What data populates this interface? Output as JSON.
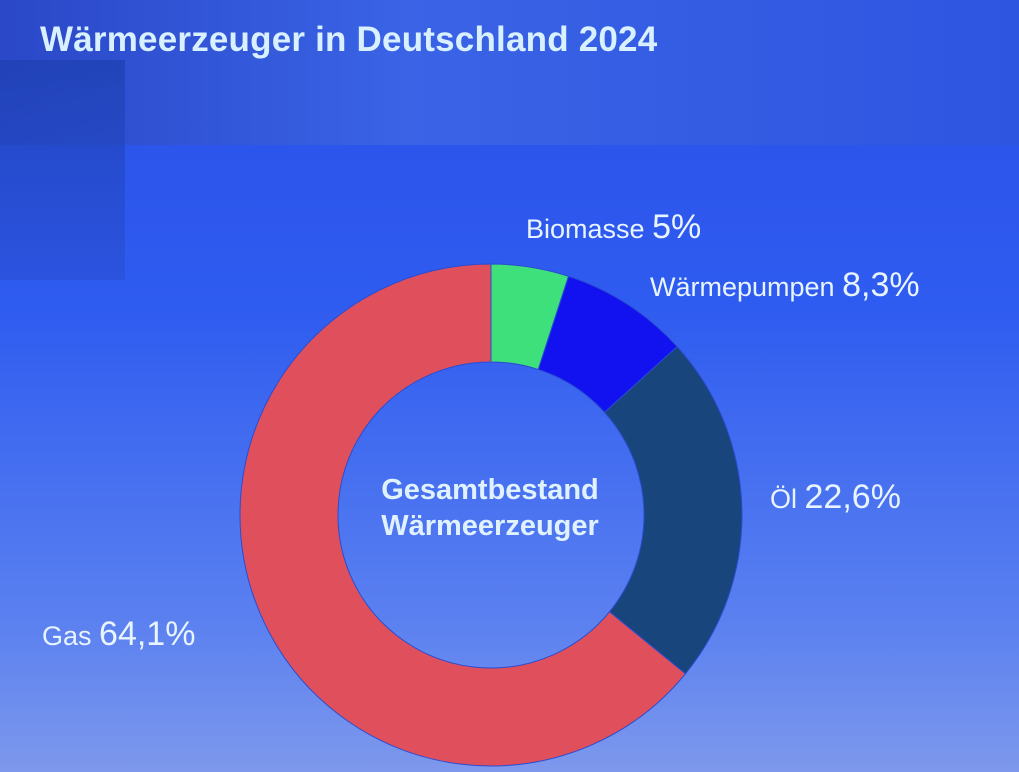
{
  "chart_data": {
    "type": "pie",
    "title": "Wärmeerzeuger in Deutschland 2024",
    "center_label": [
      "Gesamtbestand",
      "Wärmeerzeuger"
    ],
    "slices": [
      {
        "name": "Biomasse",
        "value": 5,
        "label": "5%",
        "color": "#3ee07c"
      },
      {
        "name": "Wärmepumpen",
        "value": 8.3,
        "label": "8,3%",
        "color": "#1212f0"
      },
      {
        "name": "Öl",
        "value": 22.6,
        "label": "22,6%",
        "color": "#18467c"
      },
      {
        "name": "Gas",
        "value": 64.1,
        "label": "64,1%",
        "color": "#e0505c"
      }
    ]
  }
}
